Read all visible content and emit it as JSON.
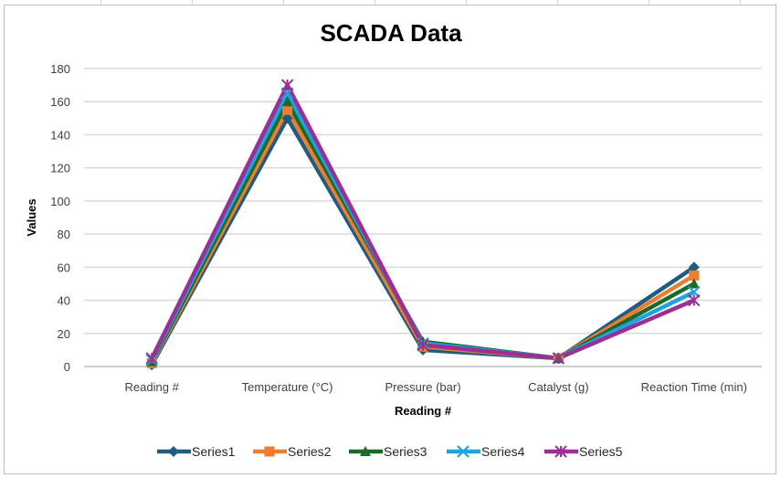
{
  "chart_data": {
    "type": "line",
    "title": "SCADA Data",
    "xlabel": "Reading #",
    "ylabel": "Values",
    "categories": [
      "Reading #",
      "Temperature (°C)",
      "Pressure (bar)",
      "Catalyst (g)",
      "Reaction Time (min)"
    ],
    "ylim": [
      0,
      180
    ],
    "yticks": [
      0,
      20,
      40,
      60,
      80,
      100,
      120,
      140,
      160,
      180
    ],
    "grid": true,
    "legend_position": "bottom",
    "series": [
      {
        "name": "Series1",
        "color": "#1f5c80",
        "marker": "diamond",
        "values": [
          1,
          150,
          10,
          5,
          60
        ]
      },
      {
        "name": "Series2",
        "color": "#ed7d31",
        "marker": "square",
        "values": [
          2,
          155,
          12,
          5,
          55
        ]
      },
      {
        "name": "Series3",
        "color": "#1a6b2a",
        "marker": "triangle",
        "values": [
          3,
          160,
          15,
          5,
          50
        ]
      },
      {
        "name": "Series4",
        "color": "#1ca3e0",
        "marker": "x",
        "values": [
          4,
          165,
          14,
          5,
          45
        ]
      },
      {
        "name": "Series5",
        "color": "#9b2f96",
        "marker": "star",
        "values": [
          5,
          170,
          13,
          5,
          40
        ]
      }
    ]
  }
}
